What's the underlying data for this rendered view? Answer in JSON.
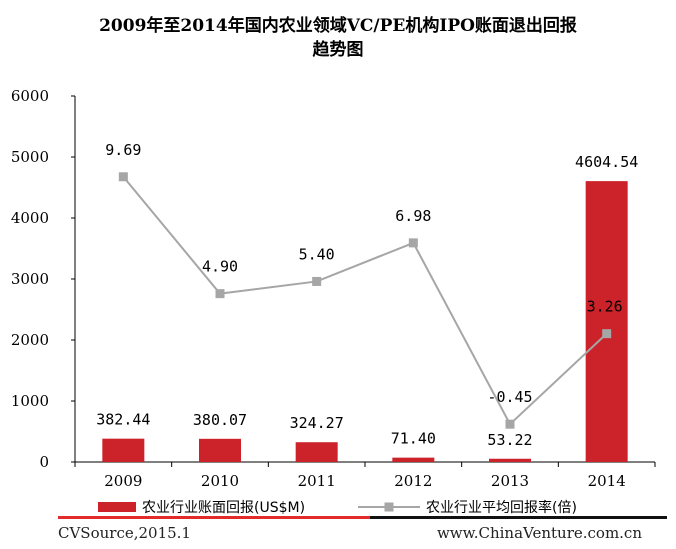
{
  "chart_data": {
    "type": "bar+line",
    "title_line1": "2009年至2014年国内农业领域VC/PE机构IPO账面退出回报",
    "title_line2": "趋势图",
    "categories": [
      "2009",
      "2010",
      "2011",
      "2012",
      "2013",
      "2014"
    ],
    "series": [
      {
        "name": "农业行业账面回报(US$M)",
        "kind": "bar",
        "color": "#cc2229",
        "values": [
          382.44,
          380.07,
          324.27,
          71.4,
          53.22,
          4604.54
        ],
        "labels": [
          "382.44",
          "380.07",
          "324.27",
          "71.40",
          "53.22",
          "4604.54"
        ]
      },
      {
        "name": "农业行业平均回报率(倍)",
        "kind": "line",
        "color": "#a6a6a6",
        "values": [
          9.69,
          4.9,
          5.4,
          6.98,
          -0.45,
          3.26
        ],
        "labels": [
          "9.69",
          "4.90",
          "5.40",
          "6.98",
          "-0.45",
          "3.26"
        ]
      }
    ],
    "yticks": [
      "0",
      "1000",
      "2000",
      "3000",
      "4000",
      "5000",
      "6000"
    ],
    "ylim": [
      0,
      6000
    ]
  },
  "footer": {
    "source": "CVSource,2015.1",
    "website": "www.ChinaVenture.com.cn"
  }
}
